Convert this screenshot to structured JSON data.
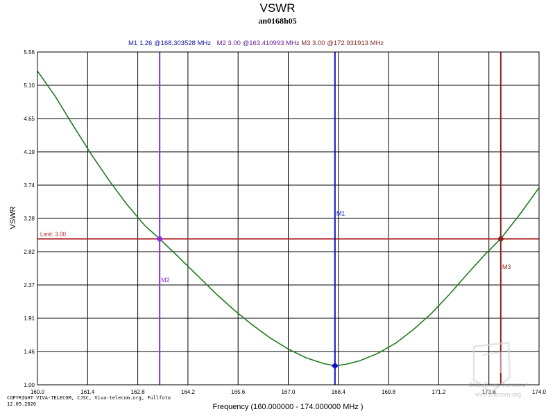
{
  "chart_data": {
    "type": "line",
    "title": "VSWR",
    "subtitle": "an0168h05",
    "xlabel": "Frequency (160.000000 - 174.000000 MHz )",
    "ylabel": "VSWR",
    "xlim": [
      160.0,
      174.0
    ],
    "ylim": [
      1.0,
      5.56
    ],
    "x_ticks": [
      "160.0",
      "161.4",
      "162.8",
      "164.2",
      "165.6",
      "167.0",
      "168.4",
      "169.8",
      "171.2",
      "172.6",
      "174.0"
    ],
    "y_ticks": [
      "5.56",
      "5.10",
      "4.65",
      "4.19",
      "3.74",
      "3.28",
      "2.82",
      "2.37",
      "1.91",
      "1.46",
      "1.00"
    ],
    "grid": true,
    "series": [
      {
        "color": "#1e7a1e",
        "x": [
          160.0,
          160.5,
          161.0,
          161.5,
          162.0,
          162.5,
          163.0,
          163.41,
          164.0,
          164.5,
          165.0,
          165.5,
          166.0,
          166.5,
          167.0,
          167.5,
          168.0,
          168.3,
          168.6,
          169.0,
          169.5,
          170.0,
          170.5,
          171.0,
          171.5,
          172.0,
          172.5,
          172.93,
          173.5,
          174.0
        ],
        "y": [
          5.3,
          4.95,
          4.55,
          4.16,
          3.8,
          3.47,
          3.18,
          3.0,
          2.72,
          2.48,
          2.24,
          2.02,
          1.82,
          1.64,
          1.49,
          1.37,
          1.29,
          1.26,
          1.28,
          1.33,
          1.43,
          1.57,
          1.76,
          1.98,
          2.24,
          2.52,
          2.79,
          3.0,
          3.36,
          3.7
        ]
      }
    ],
    "limit": {
      "value": 3.0,
      "label": "Limit: 3.00",
      "color": "#b22222"
    },
    "markers": [
      {
        "name": "M1",
        "x": 168.303528,
        "y": 1.26,
        "color": "#1010c8"
      },
      {
        "name": "M2",
        "x": 163.410993,
        "y": 3.0,
        "color": "#8a2be2"
      },
      {
        "name": "M3",
        "x": 172.931913,
        "y": 3.0,
        "color": "#8b2020"
      }
    ],
    "marker_header": [
      {
        "text": "M1   1.26 @168.303528 MHz",
        "color": "#1010a0"
      },
      {
        "text": "M2   3.00 @163.410993 MHz",
        "color": "#6a1b9a"
      },
      {
        "text": "M3   3.00 @172.931913 MHz",
        "color": "#7b1f1f"
      }
    ]
  },
  "footer": {
    "copyright": "COPYRIGHT VIVA-TELECOM, CJSC, Viva-telecom.org, Fullfoto",
    "date": "12.05.2026",
    "watermark_line1": "ЗАО \"Вива-Телеком\"",
    "watermark_line2": "viva-telecom.org"
  }
}
